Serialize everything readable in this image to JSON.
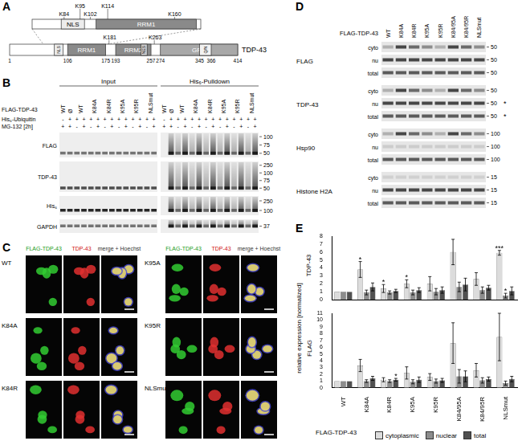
{
  "panels": {
    "A": {
      "letter": "A",
      "protein": "TDP-43",
      "length_range": [
        1,
        414
      ],
      "position_labels": [
        1,
        106,
        175,
        193,
        257,
        274,
        345,
        366,
        414
      ],
      "domains": [
        {
          "label": "NLS",
          "start": 82,
          "end": 98
        },
        {
          "label": "RRM1",
          "start": 106,
          "end": 175
        },
        {
          "label": "RRM2",
          "start": 193,
          "end": 257
        },
        {
          "label": "NES",
          "start": 239,
          "end": 250
        },
        {
          "label": "GRD",
          "start": 274,
          "end": 414
        },
        {
          "label": "Q/N",
          "start": 345,
          "end": 366
        }
      ],
      "lysines": [
        {
          "label": "K181",
          "position": 181
        },
        {
          "label": "K263",
          "position": 263
        }
      ],
      "zoom": {
        "range": [
          62,
          178
        ],
        "lysines": [
          {
            "label": "K84",
            "position": 84
          },
          {
            "label": "K95",
            "position": 95
          },
          {
            "label": "K102",
            "position": 102
          },
          {
            "label": "K114",
            "position": 114
          },
          {
            "label": "K160",
            "position": 160
          }
        ]
      }
    },
    "B": {
      "letter": "B",
      "group_labels": [
        "Input",
        "His₆-Pulldown"
      ],
      "row_labels": [
        "FLAG-TDP-43",
        "His₆-Ubiquitin",
        "MG-132 [2h]"
      ],
      "lane_groups": [
        {
          "label": "WT",
          "lanes": 1
        },
        {
          "label": "Ø",
          "lanes": 1
        },
        {
          "label": "WT",
          "lanes": 2
        },
        {
          "label": "K84A",
          "lanes": 2
        },
        {
          "label": "K84R",
          "lanes": 2
        },
        {
          "label": "K95A",
          "lanes": 2
        },
        {
          "label": "K95R",
          "lanes": 2
        },
        {
          "label": "NLSmut",
          "lanes": 2
        }
      ],
      "his_ubiquitin": [
        "-",
        "+",
        "+",
        "+",
        "+",
        "+",
        "+",
        "+",
        "+",
        "+",
        "+",
        "+",
        "+",
        "+"
      ],
      "mg132": [
        "+",
        "+",
        "-",
        "+",
        "-",
        "+",
        "-",
        "+",
        "-",
        "+",
        "-",
        "+",
        "-",
        "+"
      ],
      "blots": [
        {
          "label": "FLAG",
          "markers": [
            100,
            75,
            50
          ]
        },
        {
          "label": "TDP-43",
          "markers": [
            250,
            100,
            75,
            50
          ]
        },
        {
          "label": "His₆",
          "markers": [
            250,
            100
          ]
        },
        {
          "label": "GAPDH",
          "markers": [
            37
          ]
        }
      ]
    },
    "C": {
      "letter": "C",
      "column_labels": [
        "FLAG-TDP-43",
        "TDP-43",
        "merge + Hoechst"
      ],
      "blocks": [
        {
          "rows": [
            "WT",
            "K84A",
            "K84R"
          ]
        },
        {
          "rows": [
            "K95A",
            "K95R",
            "NLSmut"
          ]
        }
      ]
    },
    "D": {
      "letter": "D",
      "header": "FLAG-TDP-43",
      "lanes": [
        "WT",
        "K84A",
        "K84R",
        "K95A",
        "K95R",
        "K84/95A",
        "K84/95R",
        "NLSmut"
      ],
      "fractions": [
        "cyto",
        "nu",
        "total"
      ],
      "blots": [
        {
          "label": "FLAG",
          "markers": [
            50,
            50,
            50
          ],
          "asterisks": []
        },
        {
          "label": "TDP-43",
          "markers": [
            50,
            50,
            50
          ],
          "asterisks": [
            {
              "fraction": "nu",
              "text": "*"
            },
            {
              "fraction": "total",
              "text": "*"
            }
          ]
        },
        {
          "label": "Hsp90",
          "markers": [
            100,
            100,
            100
          ],
          "asterisks": []
        },
        {
          "label": "Histone H2A",
          "markers": [
            15,
            15,
            15
          ],
          "asterisks": []
        }
      ]
    },
    "E": {
      "letter": "E",
      "ylabel": "relative expression [normalized]"
    }
  },
  "chart_data": [
    {
      "type": "bar",
      "title": "TDP-43",
      "categories": [
        "WT",
        "K84A",
        "K84R",
        "K95A",
        "K95R",
        "K84/95A",
        "K84/95R",
        "NLSmut"
      ],
      "series": [
        {
          "name": "cytoplasmic",
          "color": "#dcdcdc",
          "values": [
            1,
            3.8,
            1.4,
            2.0,
            2.0,
            6.0,
            2.6,
            5.9
          ],
          "errors": [
            0,
            1.0,
            0.5,
            0.5,
            0.9,
            1.6,
            0.8,
            0.3
          ]
        },
        {
          "name": "nuclear",
          "color": "#8c8c8c",
          "values": [
            1,
            0.9,
            0.9,
            0.9,
            1.0,
            1.6,
            1.2,
            0.5
          ],
          "errors": [
            0,
            0.3,
            0.2,
            0.3,
            0.4,
            0.6,
            0.4,
            0.3
          ]
        },
        {
          "name": "total",
          "color": "#505050",
          "values": [
            1,
            1.6,
            1.1,
            1.2,
            1.2,
            1.9,
            1.5,
            1.1
          ],
          "errors": [
            0,
            0.5,
            0.2,
            0.3,
            0.4,
            0.8,
            0.3,
            0.5
          ]
        }
      ],
      "annotations": [
        {
          "category": "K84A",
          "series": "cytoplasmic",
          "text": "*"
        },
        {
          "category": "K84R",
          "series": "cytoplasmic",
          "text": "*"
        },
        {
          "category": "K95A",
          "series": "cytoplasmic",
          "text": "*"
        },
        {
          "category": "NLSmut",
          "series": "cytoplasmic",
          "text": "***"
        },
        {
          "category": "NLSmut",
          "series": "nuclear",
          "text": "*"
        }
      ],
      "ylim": [
        0,
        8
      ],
      "yticks": [
        0,
        1,
        2,
        3,
        4,
        5,
        6,
        7,
        8
      ],
      "grid": false,
      "tick_labels": "y"
    },
    {
      "type": "bar",
      "title": "FLAG",
      "xlabel": "FLAG-TDP-43",
      "categories": [
        "WT",
        "K84A",
        "K84R",
        "K95A",
        "K95R",
        "K84/95A",
        "K84/95R",
        "NLSmut"
      ],
      "series": [
        {
          "name": "cytoplasmic",
          "color": "#dcdcdc",
          "values": [
            1,
            3.3,
            1.2,
            2.2,
            1.6,
            6.6,
            2.6,
            7.5
          ],
          "errors": [
            0,
            0.9,
            0.3,
            0.9,
            0.5,
            3.0,
            1.0,
            3.5
          ]
        },
        {
          "name": "nuclear",
          "color": "#8c8c8c",
          "values": [
            1,
            1.0,
            1.0,
            0.9,
            1.0,
            1.7,
            1.1,
            0.7
          ],
          "errors": [
            0,
            0.2,
            0.2,
            0.3,
            0.3,
            1.0,
            0.4,
            0.3
          ]
        },
        {
          "name": "total",
          "color": "#505050",
          "values": [
            1,
            1.4,
            1.2,
            1.2,
            1.1,
            1.7,
            1.3,
            1.3
          ],
          "errors": [
            0,
            0.3,
            0.2,
            0.4,
            0.3,
            0.8,
            0.3,
            0.4
          ]
        }
      ],
      "annotations": [
        {
          "category": "K84R",
          "series": "total",
          "text": "*"
        }
      ],
      "ylim": [
        0,
        11
      ],
      "yticks": [
        0,
        1,
        2,
        3,
        4,
        5,
        6,
        7,
        8,
        9,
        10,
        11
      ],
      "grid": false,
      "legend": "bottom"
    }
  ]
}
